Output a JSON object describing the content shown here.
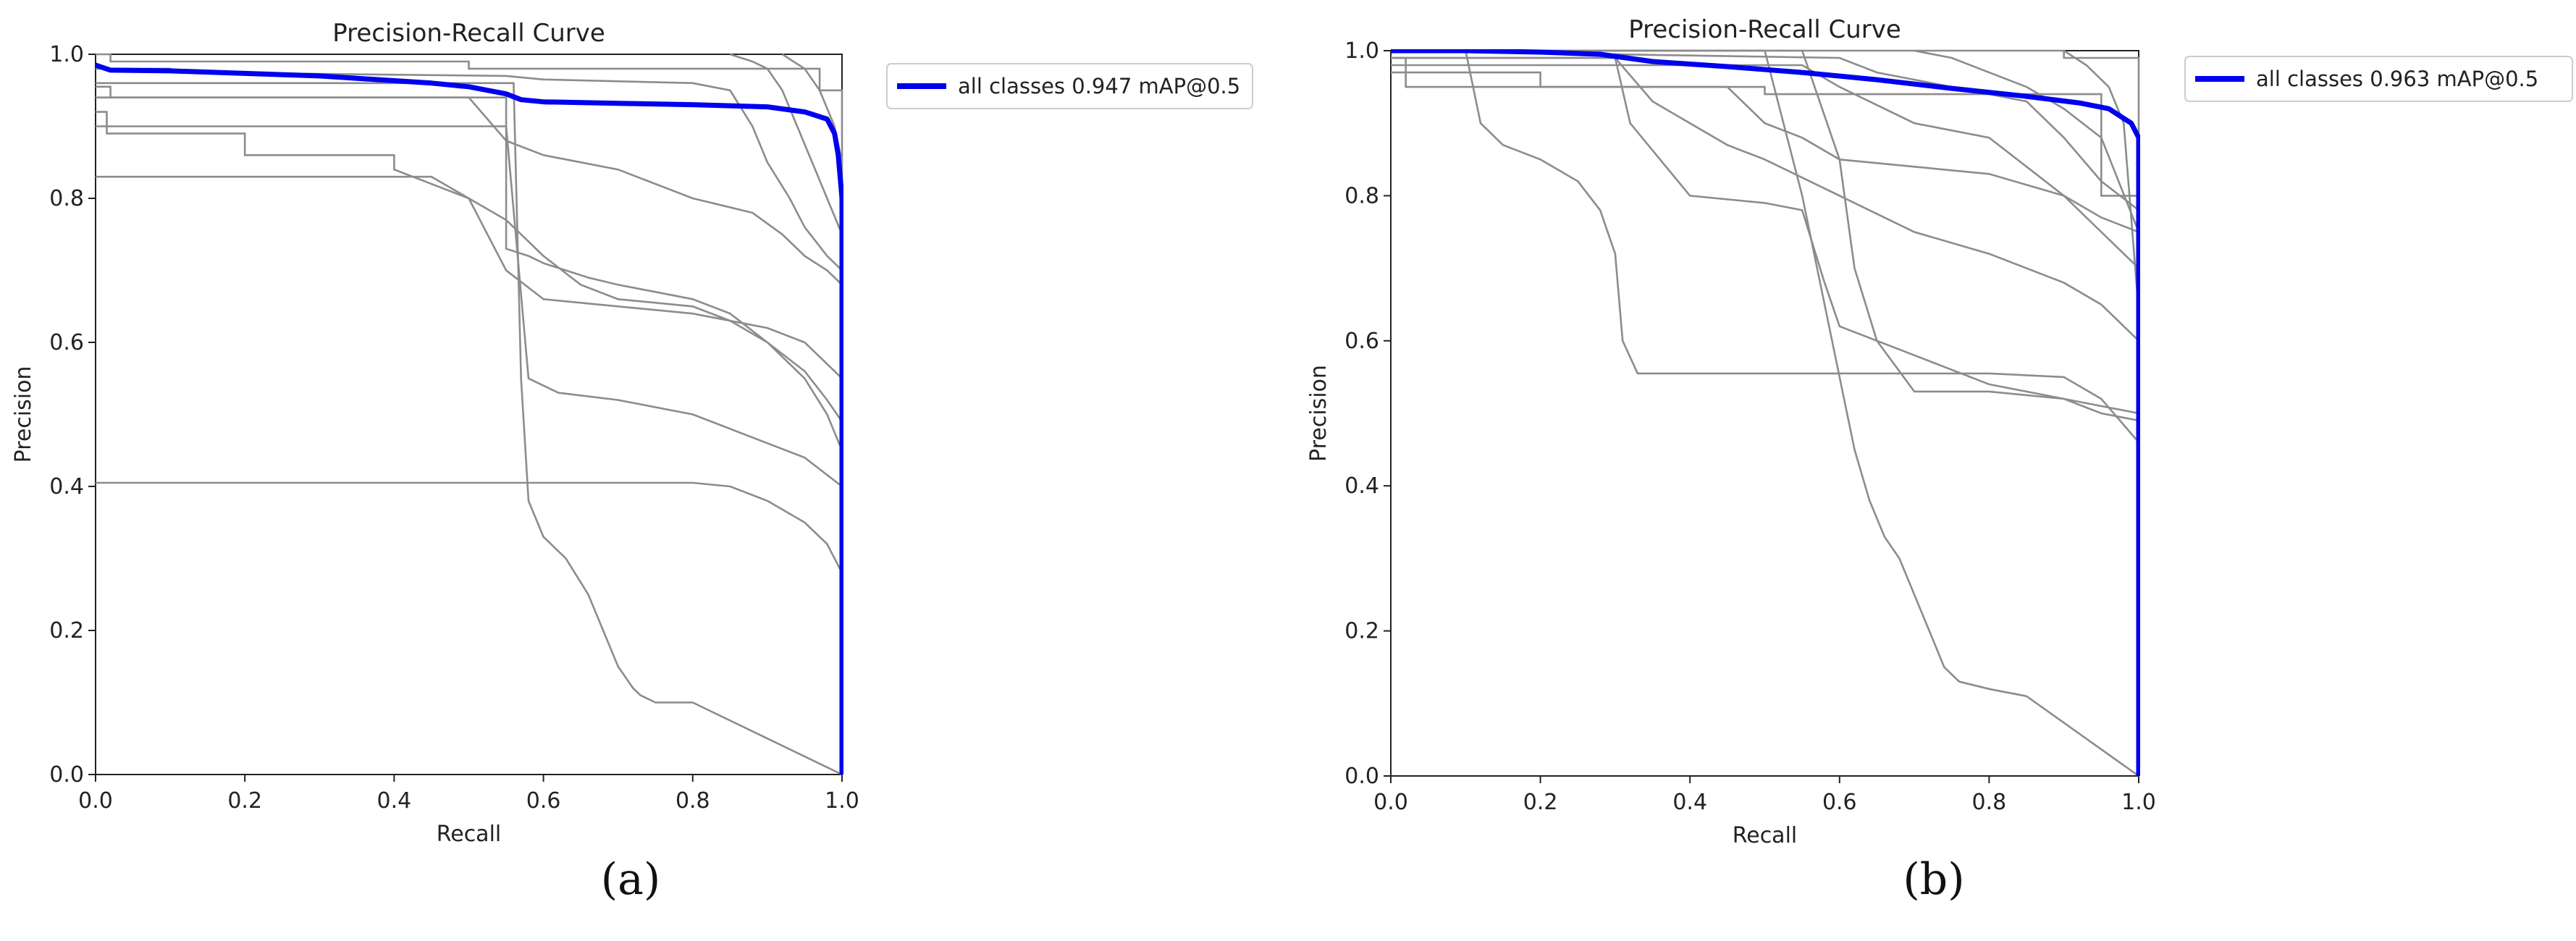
{
  "captions": [
    "(a)",
    "(b)"
  ],
  "chart_data": [
    {
      "type": "line",
      "panel": "(a)",
      "title": "Precision-Recall Curve",
      "xlabel": "Recall",
      "ylabel": "Precision",
      "xlim": [
        0.0,
        1.0
      ],
      "ylim": [
        0.0,
        1.0
      ],
      "xticks": [
        "0.0",
        "0.2",
        "0.4",
        "0.6",
        "0.8",
        "1.0"
      ],
      "yticks": [
        "0.0",
        "0.2",
        "0.4",
        "0.6",
        "0.8",
        "1.0"
      ],
      "grid": false,
      "legend_position": "outside-top-right",
      "colors": {
        "main": "#0000ee",
        "classes": "#8c8c8c"
      },
      "series": [
        {
          "name": "all classes 0.947 mAP@0.5",
          "highlight": true,
          "x": [
            0,
            0.02,
            0.1,
            0.3,
            0.45,
            0.5,
            0.55,
            0.57,
            0.6,
            0.7,
            0.8,
            0.9,
            0.95,
            0.98,
            0.99,
            0.995,
            1.0,
            1.0
          ],
          "y": [
            0.985,
            0.978,
            0.977,
            0.97,
            0.96,
            0.955,
            0.945,
            0.937,
            0.934,
            0.932,
            0.93,
            0.927,
            0.92,
            0.91,
            0.89,
            0.86,
            0.8,
            0.0
          ]
        },
        {
          "x": [
            0,
            0.02,
            0.02,
            0.5,
            0.5,
            0.97,
            0.97,
            1.0,
            1.0
          ],
          "y": [
            1.0,
            1.0,
            0.99,
            0.99,
            0.98,
            0.98,
            0.95,
            0.95,
            0.0
          ]
        },
        {
          "x": [
            0,
            0.1,
            0.1,
            0.55,
            0.6,
            0.8,
            0.85,
            0.88,
            0.9,
            0.93,
            0.95,
            0.98,
            1.0,
            1.0
          ],
          "y": [
            0.98,
            0.98,
            0.975,
            0.97,
            0.965,
            0.96,
            0.95,
            0.9,
            0.85,
            0.8,
            0.76,
            0.72,
            0.7,
            0.0
          ]
        },
        {
          "x": [
            0,
            0.3,
            0.5,
            0.55,
            0.6,
            0.7,
            0.8,
            0.88,
            0.92,
            0.95,
            0.98,
            1.0,
            1.0
          ],
          "y": [
            0.94,
            0.94,
            0.94,
            0.88,
            0.86,
            0.84,
            0.8,
            0.78,
            0.75,
            0.72,
            0.7,
            0.68,
            0.0
          ]
        },
        {
          "x": [
            0,
            0.02,
            0.02,
            0.55,
            0.55,
            0.58,
            0.6,
            0.63,
            0.66,
            0.7,
            0.75,
            0.8,
            0.85,
            0.9,
            0.95,
            0.98,
            1.0,
            1.0
          ],
          "y": [
            0.955,
            0.955,
            0.94,
            0.94,
            0.73,
            0.72,
            0.71,
            0.7,
            0.69,
            0.68,
            0.67,
            0.66,
            0.64,
            0.6,
            0.56,
            0.52,
            0.49,
            0.0
          ]
        },
        {
          "x": [
            0,
            0.015,
            0.015,
            0.2,
            0.2,
            0.4,
            0.4,
            0.5,
            0.52,
            0.55,
            0.6,
            0.7,
            0.8,
            0.9,
            0.95,
            1.0,
            1.0
          ],
          "y": [
            0.92,
            0.92,
            0.89,
            0.89,
            0.86,
            0.86,
            0.84,
            0.8,
            0.76,
            0.7,
            0.66,
            0.65,
            0.64,
            0.62,
            0.6,
            0.55,
            0.0
          ]
        },
        {
          "x": [
            0,
            0.2,
            0.45,
            0.5,
            0.55,
            0.6,
            0.65,
            0.7,
            0.8,
            0.85,
            0.9,
            0.95,
            0.98,
            1.0,
            1.0
          ],
          "y": [
            0.83,
            0.83,
            0.83,
            0.8,
            0.77,
            0.72,
            0.68,
            0.66,
            0.65,
            0.63,
            0.6,
            0.55,
            0.5,
            0.45,
            0.0
          ]
        },
        {
          "x": [
            0,
            0.55,
            0.58,
            0.62,
            0.7,
            0.8,
            0.85,
            0.9,
            0.95,
            1.0,
            1.0
          ],
          "y": [
            0.9,
            0.9,
            0.55,
            0.53,
            0.52,
            0.5,
            0.48,
            0.46,
            0.44,
            0.4,
            0.0
          ]
        },
        {
          "x": [
            0,
            0.6,
            0.8,
            0.85,
            0.9,
            0.95,
            0.98,
            1.0,
            1.0
          ],
          "y": [
            0.405,
            0.405,
            0.405,
            0.4,
            0.38,
            0.35,
            0.32,
            0.28,
            0.0
          ]
        },
        {
          "x": [
            0,
            0.1,
            0.2,
            0.4,
            0.5,
            0.56,
            0.57,
            0.58,
            0.6,
            0.63,
            0.66,
            0.68,
            0.7,
            0.72,
            0.73,
            0.75,
            0.8,
            1.0
          ],
          "y": [
            0.96,
            0.96,
            0.96,
            0.96,
            0.96,
            0.96,
            0.55,
            0.38,
            0.33,
            0.3,
            0.25,
            0.2,
            0.15,
            0.12,
            0.11,
            0.1,
            0.1,
            0.0
          ]
        },
        {
          "x": [
            0.85,
            0.88,
            0.9,
            0.92,
            0.94,
            0.96,
            0.98,
            1.0
          ],
          "y": [
            1.0,
            0.99,
            0.98,
            0.95,
            0.9,
            0.85,
            0.8,
            0.75
          ]
        },
        {
          "x": [
            0.92,
            0.95,
            0.97,
            0.99,
            1.0
          ],
          "y": [
            1.0,
            0.98,
            0.95,
            0.9,
            0.85
          ]
        }
      ]
    },
    {
      "type": "line",
      "panel": "(b)",
      "title": "Precision-Recall Curve",
      "xlabel": "Recall",
      "ylabel": "Precision",
      "xlim": [
        0.0,
        1.0
      ],
      "ylim": [
        0.0,
        1.0
      ],
      "xticks": [
        "0.0",
        "0.2",
        "0.4",
        "0.6",
        "0.8",
        "1.0"
      ],
      "yticks": [
        "0.0",
        "0.2",
        "0.4",
        "0.6",
        "0.8",
        "1.0"
      ],
      "grid": false,
      "legend_position": "outside-top-right",
      "colors": {
        "main": "#0000ee",
        "classes": "#8c8c8c"
      },
      "series": [
        {
          "name": "all classes 0.963 mAP@0.5",
          "highlight": true,
          "x": [
            0,
            0.1,
            0.2,
            0.28,
            0.35,
            0.45,
            0.55,
            0.65,
            0.75,
            0.85,
            0.92,
            0.96,
            0.99,
            1.0,
            1.0
          ],
          "y": [
            1.0,
            1.0,
            0.998,
            0.995,
            0.985,
            0.978,
            0.97,
            0.96,
            0.948,
            0.937,
            0.928,
            0.92,
            0.9,
            0.88,
            0.0
          ]
        },
        {
          "x": [
            0,
            0.9,
            0.9,
            1.0,
            1.0
          ],
          "y": [
            1.0,
            1.0,
            0.99,
            0.99,
            0.0
          ]
        },
        {
          "x": [
            0,
            0.6,
            0.65,
            0.75,
            0.85,
            0.9,
            0.95,
            1.0,
            1.0
          ],
          "y": [
            1.0,
            0.99,
            0.97,
            0.95,
            0.93,
            0.88,
            0.82,
            0.78,
            0.0
          ]
        },
        {
          "x": [
            0,
            0.55,
            0.6,
            0.7,
            0.8,
            0.85,
            0.9,
            0.95,
            1.0,
            1.0
          ],
          "y": [
            0.98,
            0.98,
            0.95,
            0.9,
            0.88,
            0.84,
            0.8,
            0.77,
            0.75,
            0.0
          ]
        },
        {
          "x": [
            0,
            0.2,
            0.2,
            0.5,
            0.5,
            0.95,
            0.95,
            1.0,
            1.0
          ],
          "y": [
            0.97,
            0.97,
            0.95,
            0.95,
            0.94,
            0.94,
            0.8,
            0.8,
            0.0
          ]
        },
        {
          "x": [
            0,
            0.02,
            0.02,
            0.45,
            0.5,
            0.55,
            0.6,
            0.7,
            0.8,
            0.9,
            0.95,
            1.0,
            1.0
          ],
          "y": [
            0.99,
            0.99,
            0.95,
            0.95,
            0.9,
            0.88,
            0.85,
            0.84,
            0.83,
            0.8,
            0.75,
            0.7,
            0.0
          ]
        },
        {
          "x": [
            0,
            0.3,
            0.35,
            0.4,
            0.45,
            0.5,
            0.6,
            0.7,
            0.8,
            0.9,
            0.95,
            1.0,
            1.0
          ],
          "y": [
            0.99,
            0.99,
            0.93,
            0.9,
            0.87,
            0.85,
            0.8,
            0.75,
            0.72,
            0.68,
            0.65,
            0.6,
            0.0
          ]
        },
        {
          "x": [
            0,
            0.3,
            0.32,
            0.4,
            0.5,
            0.55,
            0.58,
            0.6,
            0.7,
            0.8,
            0.9,
            0.95,
            1.0
          ],
          "y": [
            0.99,
            0.99,
            0.9,
            0.8,
            0.79,
            0.78,
            0.68,
            0.62,
            0.58,
            0.54,
            0.52,
            0.5,
            0.49
          ]
        },
        {
          "x": [
            0,
            0.55,
            0.6,
            0.62,
            0.65,
            0.7,
            0.8,
            0.9,
            1.0
          ],
          "y": [
            1.0,
            1.0,
            0.85,
            0.7,
            0.6,
            0.53,
            0.53,
            0.52,
            0.5
          ]
        },
        {
          "x": [
            0,
            0.1,
            0.12,
            0.15,
            0.2,
            0.25,
            0.28,
            0.3,
            0.31,
            0.33,
            0.6,
            0.8,
            0.9,
            0.95,
            1.0
          ],
          "y": [
            1.0,
            1.0,
            0.9,
            0.87,
            0.85,
            0.82,
            0.78,
            0.72,
            0.6,
            0.555,
            0.555,
            0.555,
            0.55,
            0.52,
            0.46
          ]
        },
        {
          "x": [
            0,
            0.5,
            0.55,
            0.6,
            0.62,
            0.64,
            0.66,
            0.68,
            0.7,
            0.72,
            0.74,
            0.76,
            0.8,
            0.85,
            1.0
          ],
          "y": [
            1.0,
            1.0,
            0.8,
            0.55,
            0.45,
            0.38,
            0.33,
            0.3,
            0.25,
            0.2,
            0.15,
            0.13,
            0.12,
            0.11,
            0.0
          ]
        },
        {
          "x": [
            0.7,
            0.75,
            0.8,
            0.85,
            0.9,
            0.95,
            1.0
          ],
          "y": [
            1.0,
            0.99,
            0.97,
            0.95,
            0.92,
            0.88,
            0.75
          ]
        },
        {
          "x": [
            0.9,
            0.93,
            0.96,
            0.98,
            1.0
          ],
          "y": [
            1.0,
            0.98,
            0.95,
            0.9,
            0.64
          ]
        }
      ]
    }
  ]
}
